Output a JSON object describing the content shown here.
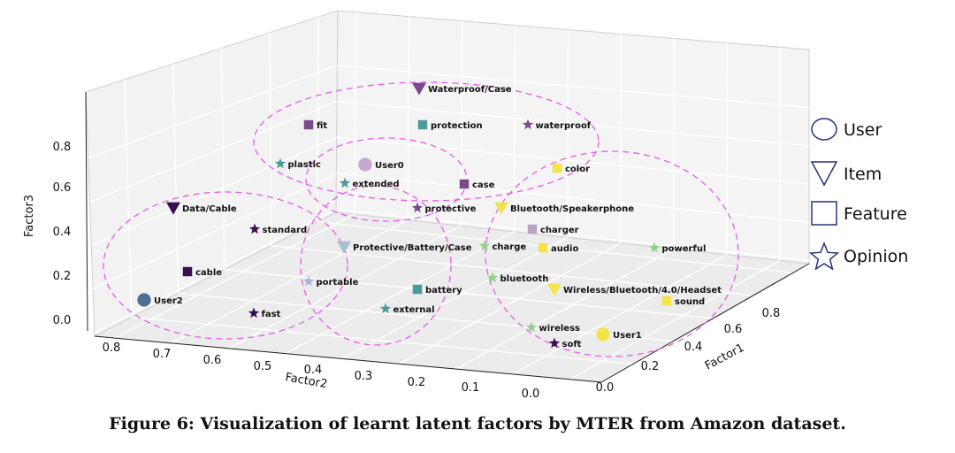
{
  "caption": "Figure 6: Visualization of learnt latent factors by MTER from Amazon dataset.",
  "chart_data": {
    "type": "scatter",
    "projection": "3d",
    "title": "",
    "axes": {
      "x": {
        "label": "Factor2",
        "ticks": [
          "0.8",
          "0.7",
          "0.6",
          "0.5",
          "0.4",
          "0.3",
          "0.2",
          "0.1",
          "0.0"
        ]
      },
      "y": {
        "label": "Factor1",
        "ticks": [
          "0.0",
          "0.2",
          "0.4",
          "0.6",
          "0.8"
        ]
      },
      "z": {
        "label": "Factor3",
        "ticks": [
          "0.0",
          "0.2",
          "0.4",
          "0.6",
          "0.8"
        ]
      }
    },
    "grid": true,
    "legend": {
      "position": "right",
      "entries": [
        {
          "label": "User",
          "marker": "circle"
        },
        {
          "label": "Item",
          "marker": "triangle-down"
        },
        {
          "label": "Feature",
          "marker": "square"
        },
        {
          "label": "Opinion",
          "marker": "star"
        }
      ]
    },
    "colors": {
      "dark_purple": "#3b0f4f",
      "purple": "#7a4a8c",
      "mauve": "#a884b8",
      "teal": "#4b9a9a",
      "steel": "#4e6f96",
      "green": "#8fd18a",
      "yellow": "#f4e24a",
      "cluster_ellipse": "#e85ae8"
    },
    "points": [
      {
        "label": "Waterproof/Case",
        "category": "Item",
        "color": "#7a4a8c"
      },
      {
        "label": "fit",
        "category": "Feature",
        "color": "#7a4a8c"
      },
      {
        "label": "protection",
        "category": "Feature",
        "color": "#4b9a9a"
      },
      {
        "label": "waterproof",
        "category": "Opinion",
        "color": "#7a4a8c"
      },
      {
        "label": "plastic",
        "category": "Opinion",
        "color": "#4b9a9a"
      },
      {
        "label": "User0",
        "category": "User",
        "color": "#c4a9cf"
      },
      {
        "label": "extended",
        "category": "Opinion",
        "color": "#4b9a9a"
      },
      {
        "label": "case",
        "category": "Feature",
        "color": "#7a4a8c"
      },
      {
        "label": "color",
        "category": "Feature",
        "color": "#f4e24a"
      },
      {
        "label": "Data/Cable",
        "category": "Item",
        "color": "#3b0f4f"
      },
      {
        "label": "protective",
        "category": "Opinion",
        "color": "#7a4a8c"
      },
      {
        "label": "Bluetooth/Speakerphone",
        "category": "Item",
        "color": "#f4e24a"
      },
      {
        "label": "standard",
        "category": "Opinion",
        "color": "#3b0f4f"
      },
      {
        "label": "charger",
        "category": "Feature",
        "color": "#b9a2c4"
      },
      {
        "label": "Protective/Battery/Case",
        "category": "Item",
        "color": "#a9bfd0"
      },
      {
        "label": "charge",
        "category": "Opinion",
        "color": "#8fd18a"
      },
      {
        "label": "audio",
        "category": "Feature",
        "color": "#f4e24a"
      },
      {
        "label": "powerful",
        "category": "Opinion",
        "color": "#8fd18a"
      },
      {
        "label": "cable",
        "category": "Feature",
        "color": "#3b0f4f"
      },
      {
        "label": "portable",
        "category": "Opinion",
        "color": "#a7b3dc"
      },
      {
        "label": "bluetooth",
        "category": "Opinion",
        "color": "#8fd18a"
      },
      {
        "label": "battery",
        "category": "Feature",
        "color": "#4b9a9a"
      },
      {
        "label": "Wireless/Bluetooth/4.0/Headset",
        "category": "Item",
        "color": "#f4e24a"
      },
      {
        "label": "User2",
        "category": "User",
        "color": "#4e6f96"
      },
      {
        "label": "sound",
        "category": "Feature",
        "color": "#f4e24a"
      },
      {
        "label": "external",
        "category": "Opinion",
        "color": "#4b9a9a"
      },
      {
        "label": "fast",
        "category": "Opinion",
        "color": "#3b0f4f"
      },
      {
        "label": "wireless",
        "category": "Opinion",
        "color": "#8fd18a"
      },
      {
        "label": "User1",
        "category": "User",
        "color": "#f4e24a"
      },
      {
        "label": "soft",
        "category": "Opinion",
        "color": "#3b0f4f"
      }
    ]
  }
}
